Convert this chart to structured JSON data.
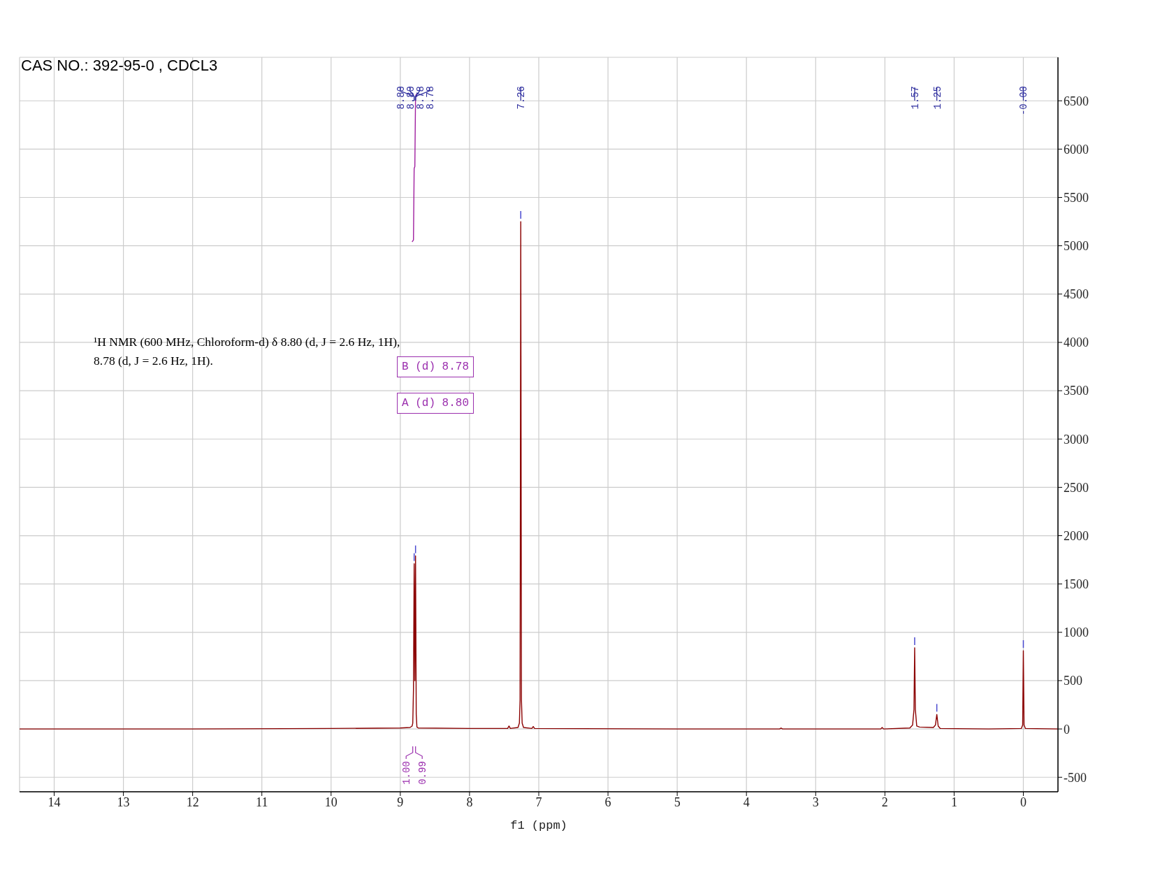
{
  "chart_data": {
    "type": "line",
    "title": "CAS NO.: 392-95-0 , CDCL3",
    "xlabel": "f1 (ppm)",
    "xlim": [
      14.5,
      -0.5
    ],
    "xticks": [
      14,
      13,
      12,
      11,
      10,
      9,
      8,
      7,
      6,
      5,
      4,
      3,
      2,
      1,
      0
    ],
    "ylim": [
      -650,
      6950
    ],
    "yticks": [
      -500,
      0,
      500,
      1000,
      1500,
      2000,
      2500,
      3000,
      3500,
      4000,
      4500,
      5000,
      5500,
      6000,
      6500
    ],
    "grid": true,
    "marker": "none",
    "line_style": "solid",
    "series": [
      {
        "color": "#8b0000",
        "x": [
          14.5,
          12.0,
          10.0,
          9.0,
          8.86,
          8.83,
          8.82,
          8.81,
          8.8,
          8.79,
          8.78,
          8.77,
          8.76,
          8.74,
          8.0,
          7.45,
          7.43,
          7.41,
          7.3,
          7.28,
          7.27,
          7.26,
          7.25,
          7.24,
          7.22,
          7.1,
          7.08,
          7.06,
          5.0,
          3.52,
          3.5,
          3.48,
          2.06,
          2.04,
          2.02,
          1.64,
          1.6,
          1.58,
          1.57,
          1.56,
          1.54,
          1.5,
          1.3,
          1.27,
          1.25,
          1.23,
          1.2,
          0.5,
          0.03,
          0.01,
          0.0,
          -0.01,
          -0.03,
          -0.5
        ],
        "values": [
          0,
          0,
          5,
          10,
          15,
          30,
          60,
          400,
          1710,
          500,
          1790,
          150,
          20,
          10,
          5,
          5,
          30,
          5,
          15,
          60,
          300,
          5250,
          300,
          60,
          15,
          5,
          25,
          5,
          0,
          0,
          10,
          0,
          0,
          15,
          0,
          10,
          40,
          200,
          840,
          200,
          30,
          20,
          15,
          40,
          150,
          30,
          5,
          0,
          5,
          40,
          810,
          40,
          5,
          0
        ]
      },
      {
        "color": "#a020a0",
        "x": [
          8.83,
          8.81,
          8.8,
          8.79,
          8.78,
          8.77
        ],
        "values": [
          5040,
          5060,
          5800,
          5820,
          6540,
          6570
        ]
      }
    ],
    "annotations": [
      "¹H NMR (600 MHz, Chloroform-d) δ 8.80 (d, J = 2.6 Hz, 1H), 8.78 (d, J = 2.6 Hz, 1H).",
      "8.80",
      "8.80",
      "8.78",
      "8.78",
      "7.26",
      "1.57",
      "1.25",
      "-0.00",
      "B (d) 8.78",
      "A (d) 8.80",
      "1.00",
      "0.99"
    ]
  }
}
